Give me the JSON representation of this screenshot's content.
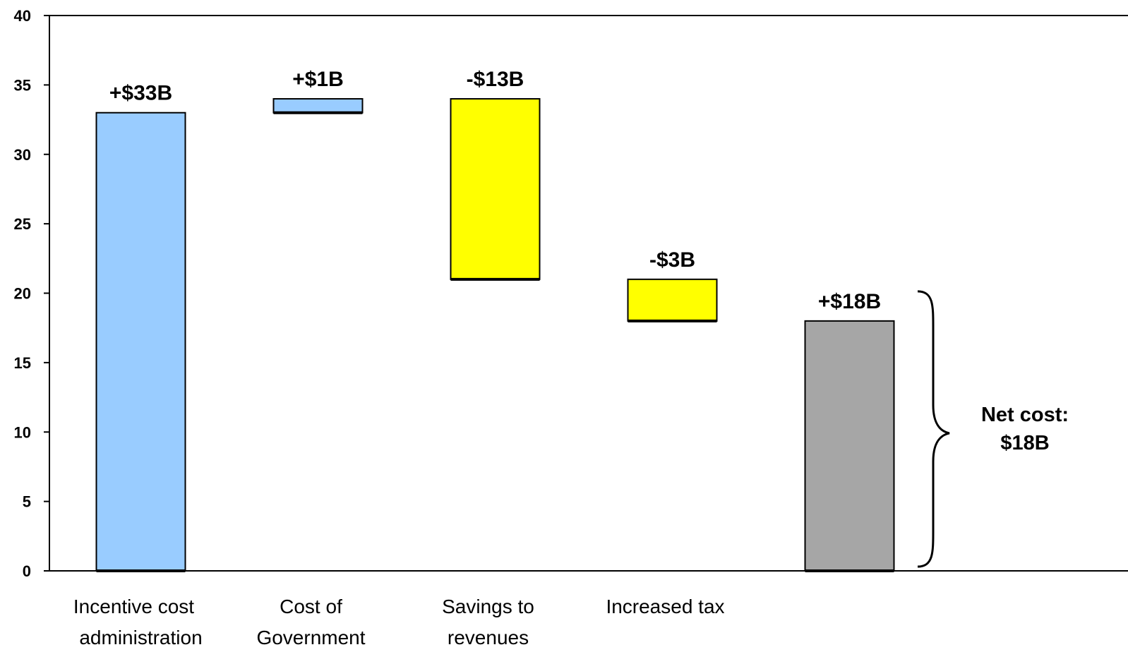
{
  "chart_data": {
    "type": "bar",
    "subtype": "waterfall",
    "title": "",
    "xlabel": "",
    "ylabel": "",
    "ylim": [
      0,
      40
    ],
    "yticks": [
      0,
      5,
      10,
      15,
      20,
      25,
      30,
      35,
      40
    ],
    "grid": false,
    "legend": "none",
    "categories": [
      [
        "Incentive cost",
        "administration"
      ],
      [
        "Cost of",
        "Government"
      ],
      [
        "Savings to",
        "revenues"
      ],
      [
        "Increased tax"
      ],
      [
        ""
      ]
    ],
    "bars": [
      {
        "start": 0,
        "end": 33,
        "label": "+$33B",
        "color": "#99ccff"
      },
      {
        "start": 33,
        "end": 34,
        "label": "+$1B",
        "color": "#99ccff"
      },
      {
        "start": 21,
        "end": 34,
        "label": "-$13B",
        "color": "#ffff00"
      },
      {
        "start": 18,
        "end": 21,
        "label": "-$3B",
        "color": "#ffff00"
      },
      {
        "start": 0,
        "end": 18,
        "label": "+$18B",
        "color": "#a6a6a6"
      }
    ],
    "annotation": {
      "lines": [
        "Net cost:",
        "$18B"
      ],
      "span": [
        0,
        18
      ]
    }
  }
}
